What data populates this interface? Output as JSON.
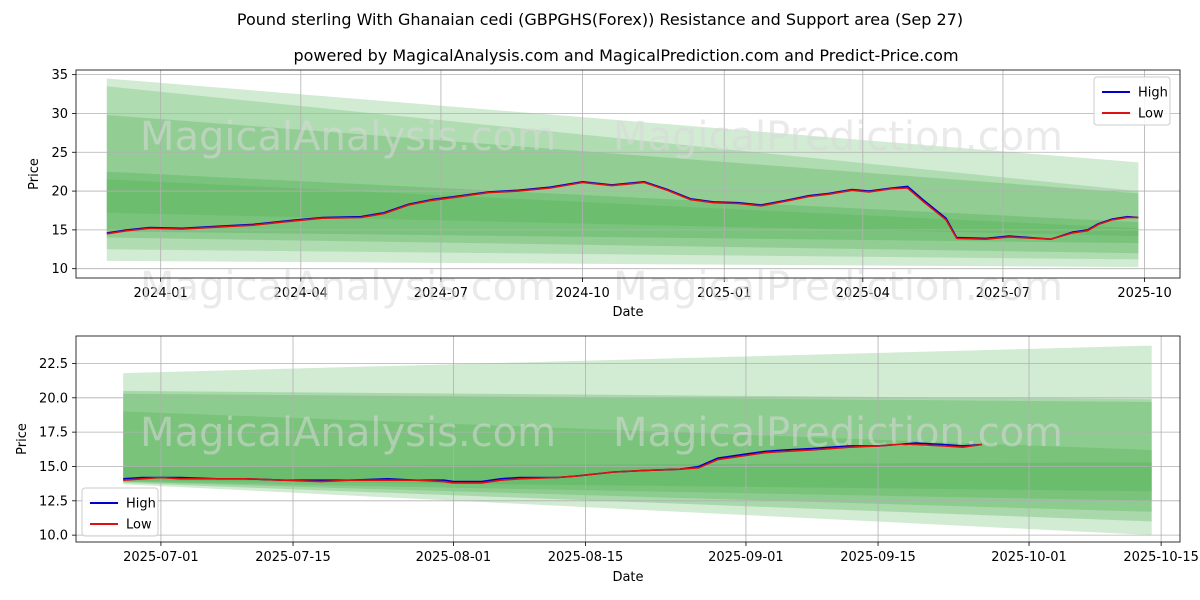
{
  "chart_data": [
    {
      "type": "line",
      "title": "Pound sterling With Ghanaian cedi (GBPGHS(Forex)) Resistance and Support area (Sep 27)",
      "subtitle": "powered by MagicalAnalysis.com and MagicalPrediction.com and Predict-Price.com",
      "xlabel": "Date",
      "ylabel": "Price",
      "xlim": [
        "2023-11-07",
        "2025-10-24"
      ],
      "ylim": [
        8.8,
        35.6
      ],
      "x_ticks": [
        "2024-01",
        "2024-04",
        "2024-07",
        "2024-10",
        "2025-01",
        "2025-04",
        "2025-07",
        "2025-10"
      ],
      "x_tick_dates": [
        "2024-01-01",
        "2024-04-01",
        "2024-07-01",
        "2024-10-01",
        "2025-01-01",
        "2025-04-01",
        "2025-07-01",
        "2025-10-01"
      ],
      "y_ticks": [
        10,
        15,
        20,
        25,
        30,
        35
      ],
      "y_tick_labels": [
        "10",
        "15",
        "20",
        "25",
        "30",
        "35"
      ],
      "legend": {
        "position": "top-right",
        "entries": [
          "High",
          "Low"
        ]
      },
      "watermarks": [
        "MagicalAnalysis.com",
        "MagicalPrediction.com"
      ],
      "bands": [
        {
          "start": "2023-11-27",
          "end": "2025-09-27",
          "upper": [
            34.5,
            23.7
          ],
          "lower": [
            11.0,
            10.2
          ],
          "color": "#4caf50",
          "opacity": 0.25
        },
        {
          "start": "2023-11-27",
          "end": "2025-09-27",
          "upper": [
            33.5,
            20.0
          ],
          "lower": [
            12.5,
            11.2
          ],
          "color": "#4caf50",
          "opacity": 0.25
        },
        {
          "start": "2023-11-27",
          "end": "2025-09-27",
          "upper": [
            29.8,
            19.7
          ],
          "lower": [
            14.0,
            12.0
          ],
          "color": "#4caf50",
          "opacity": 0.3
        },
        {
          "start": "2023-11-27",
          "end": "2025-09-27",
          "upper": [
            22.5,
            16.0
          ],
          "lower": [
            14.8,
            13.3
          ],
          "color": "#4caf50",
          "opacity": 0.35
        },
        {
          "start": "2023-11-27",
          "end": "2025-09-27",
          "upper": [
            21.5,
            15.2
          ],
          "lower": [
            17.2,
            14.2
          ],
          "color": "#4caf50",
          "opacity": 0.3
        }
      ],
      "series": [
        {
          "name": "High",
          "color": "#0000cc",
          "x": [
            "2023-11-27",
            "2023-12-10",
            "2023-12-25",
            "2024-01-15",
            "2024-02-10",
            "2024-03-01",
            "2024-03-25",
            "2024-04-15",
            "2024-05-10",
            "2024-05-25",
            "2024-06-10",
            "2024-06-25",
            "2024-07-10",
            "2024-08-01",
            "2024-08-20",
            "2024-09-10",
            "2024-10-01",
            "2024-10-20",
            "2024-11-10",
            "2024-11-25",
            "2024-12-10",
            "2024-12-25",
            "2025-01-10",
            "2025-01-25",
            "2025-02-10",
            "2025-02-25",
            "2025-03-10",
            "2025-03-25",
            "2025-04-05",
            "2025-04-20",
            "2025-04-30",
            "2025-05-10",
            "2025-05-25",
            "2025-06-01",
            "2025-06-20",
            "2025-07-05",
            "2025-08-01",
            "2025-08-15",
            "2025-08-25",
            "2025-09-01",
            "2025-09-10",
            "2025-09-20",
            "2025-09-27"
          ],
          "values": [
            14.6,
            15.0,
            15.3,
            15.2,
            15.5,
            15.7,
            16.2,
            16.6,
            16.7,
            17.2,
            18.3,
            18.9,
            19.3,
            19.9,
            20.1,
            20.5,
            21.2,
            20.8,
            21.2,
            20.2,
            19.0,
            18.6,
            18.5,
            18.2,
            18.8,
            19.4,
            19.7,
            20.2,
            20.0,
            20.4,
            20.6,
            18.9,
            16.5,
            14.0,
            13.9,
            14.2,
            13.8,
            14.7,
            15.0,
            15.8,
            16.4,
            16.7,
            16.6
          ]
        },
        {
          "name": "Low",
          "color": "#dd1111",
          "x": [
            "2023-11-27",
            "2023-12-10",
            "2023-12-25",
            "2024-01-15",
            "2024-02-10",
            "2024-03-01",
            "2024-03-25",
            "2024-04-15",
            "2024-05-10",
            "2024-05-25",
            "2024-06-10",
            "2024-06-25",
            "2024-07-10",
            "2024-08-01",
            "2024-08-20",
            "2024-09-10",
            "2024-10-01",
            "2024-10-20",
            "2024-11-10",
            "2024-11-25",
            "2024-12-10",
            "2024-12-25",
            "2025-01-10",
            "2025-01-25",
            "2025-02-10",
            "2025-02-25",
            "2025-03-10",
            "2025-03-25",
            "2025-04-05",
            "2025-04-20",
            "2025-04-30",
            "2025-05-10",
            "2025-05-25",
            "2025-06-01",
            "2025-06-20",
            "2025-07-05",
            "2025-08-01",
            "2025-08-15",
            "2025-08-25",
            "2025-09-01",
            "2025-09-10",
            "2025-09-20",
            "2025-09-27"
          ],
          "values": [
            14.5,
            14.9,
            15.2,
            15.1,
            15.4,
            15.6,
            16.1,
            16.5,
            16.6,
            17.1,
            18.2,
            18.8,
            19.2,
            19.8,
            20.0,
            20.4,
            21.1,
            20.7,
            21.1,
            20.1,
            18.9,
            18.5,
            18.4,
            18.1,
            18.7,
            19.3,
            19.6,
            20.1,
            19.9,
            20.3,
            20.4,
            18.7,
            16.3,
            13.9,
            13.8,
            14.1,
            13.8,
            14.6,
            14.9,
            15.7,
            16.3,
            16.6,
            16.6
          ]
        }
      ]
    },
    {
      "type": "line",
      "xlabel": "Date",
      "ylabel": "Price",
      "xlim": [
        "2025-06-22",
        "2025-10-17"
      ],
      "ylim": [
        9.5,
        24.5
      ],
      "x_ticks": [
        "2025-07-01",
        "2025-07-15",
        "2025-08-01",
        "2025-08-15",
        "2025-09-01",
        "2025-09-15",
        "2025-10-01",
        "2025-10-15"
      ],
      "y_ticks": [
        10.0,
        12.5,
        15.0,
        17.5,
        20.0,
        22.5
      ],
      "y_tick_labels": [
        "10.0",
        "12.5",
        "15.0",
        "17.5",
        "20.0",
        "22.5"
      ],
      "legend": {
        "position": "bottom-left",
        "entries": [
          "High",
          "Low"
        ]
      },
      "watermarks": [
        "MagicalAnalysis.com",
        "MagicalPrediction.com"
      ],
      "bands": [
        {
          "start": "2025-06-27",
          "end": "2025-10-14",
          "upper": [
            21.8,
            23.8
          ],
          "lower": [
            13.7,
            10.0
          ],
          "color": "#4caf50",
          "opacity": 0.25
        },
        {
          "start": "2025-06-27",
          "end": "2025-10-14",
          "upper": [
            20.5,
            19.9
          ],
          "lower": [
            13.8,
            11.0
          ],
          "color": "#4caf50",
          "opacity": 0.3
        },
        {
          "start": "2025-06-27",
          "end": "2025-10-14",
          "upper": [
            20.3,
            19.7
          ],
          "lower": [
            13.9,
            11.7
          ],
          "color": "#4caf50",
          "opacity": 0.3
        },
        {
          "start": "2025-06-27",
          "end": "2025-10-14",
          "upper": [
            19.0,
            16.2
          ],
          "lower": [
            13.9,
            12.5
          ],
          "color": "#4caf50",
          "opacity": 0.3
        },
        {
          "start": "2025-06-27",
          "end": "2025-10-14",
          "upper": [
            15.0,
            15.3
          ],
          "lower": [
            14.0,
            13.2
          ],
          "color": "#4caf50",
          "opacity": 0.3
        }
      ],
      "series": [
        {
          "name": "High",
          "color": "#0000cc",
          "x": [
            "2025-06-27",
            "2025-06-29",
            "2025-07-01",
            "2025-07-03",
            "2025-07-07",
            "2025-07-10",
            "2025-07-14",
            "2025-07-18",
            "2025-07-21",
            "2025-07-25",
            "2025-07-28",
            "2025-07-31",
            "2025-08-01",
            "2025-08-04",
            "2025-08-06",
            "2025-08-08",
            "2025-08-12",
            "2025-08-14",
            "2025-08-18",
            "2025-08-21",
            "2025-08-25",
            "2025-08-27",
            "2025-08-29",
            "2025-09-01",
            "2025-09-03",
            "2025-09-05",
            "2025-09-08",
            "2025-09-10",
            "2025-09-12",
            "2025-09-15",
            "2025-09-17",
            "2025-09-19",
            "2025-09-22",
            "2025-09-24",
            "2025-09-26"
          ],
          "values": [
            14.1,
            14.2,
            14.2,
            14.2,
            14.1,
            14.1,
            14.0,
            14.0,
            14.0,
            14.1,
            14.0,
            14.0,
            13.9,
            13.9,
            14.1,
            14.2,
            14.2,
            14.3,
            14.6,
            14.7,
            14.8,
            15.0,
            15.6,
            15.9,
            16.1,
            16.2,
            16.3,
            16.4,
            16.5,
            16.5,
            16.6,
            16.7,
            16.6,
            16.5,
            16.6
          ]
        },
        {
          "name": "Low",
          "color": "#dd1111",
          "x": [
            "2025-06-27",
            "2025-06-29",
            "2025-07-01",
            "2025-07-03",
            "2025-07-07",
            "2025-07-10",
            "2025-07-14",
            "2025-07-18",
            "2025-07-21",
            "2025-07-25",
            "2025-07-28",
            "2025-07-31",
            "2025-08-01",
            "2025-08-04",
            "2025-08-06",
            "2025-08-08",
            "2025-08-12",
            "2025-08-14",
            "2025-08-18",
            "2025-08-21",
            "2025-08-25",
            "2025-08-27",
            "2025-08-29",
            "2025-09-01",
            "2025-09-03",
            "2025-09-05",
            "2025-09-08",
            "2025-09-10",
            "2025-09-12",
            "2025-09-15",
            "2025-09-17",
            "2025-09-19",
            "2025-09-22",
            "2025-09-24",
            "2025-09-26"
          ],
          "values": [
            14.0,
            14.1,
            14.2,
            14.1,
            14.1,
            14.1,
            14.0,
            13.9,
            14.0,
            14.0,
            14.0,
            13.9,
            13.8,
            13.8,
            14.0,
            14.1,
            14.2,
            14.3,
            14.6,
            14.7,
            14.8,
            14.9,
            15.5,
            15.8,
            16.0,
            16.1,
            16.2,
            16.3,
            16.4,
            16.5,
            16.6,
            16.6,
            16.5,
            16.4,
            16.6
          ]
        }
      ]
    }
  ]
}
